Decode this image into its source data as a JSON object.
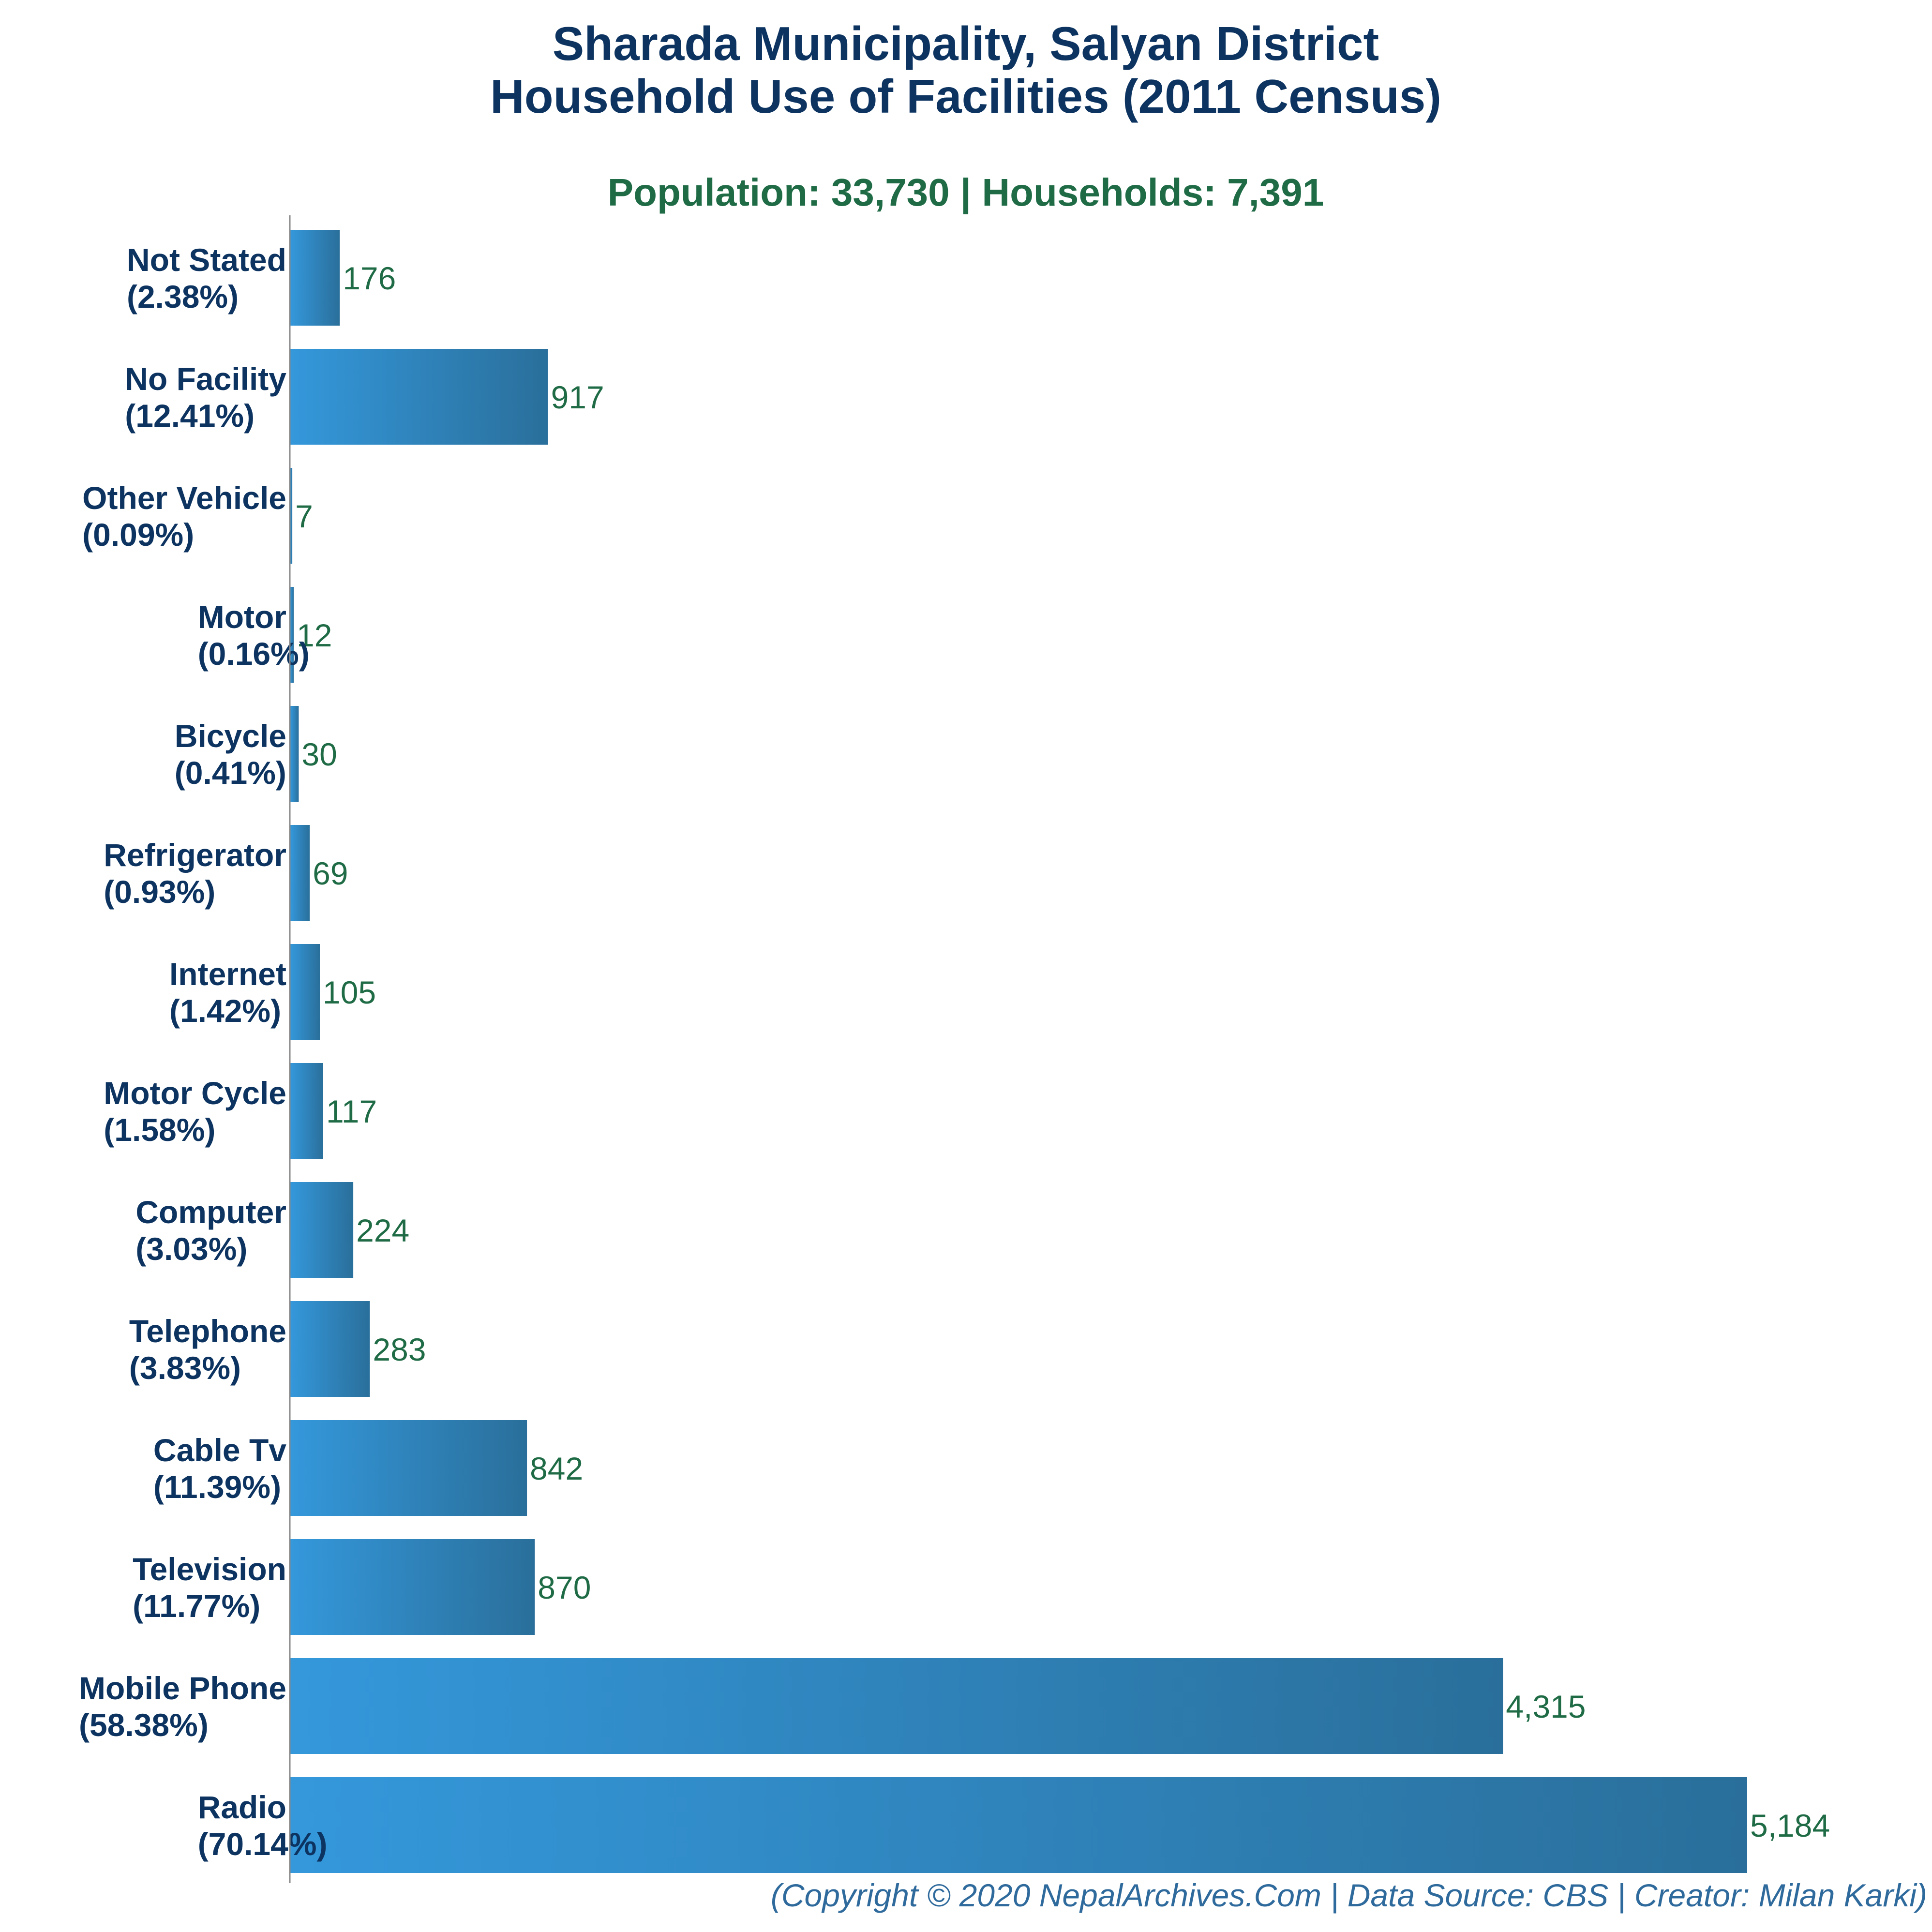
{
  "chart_data": {
    "type": "bar",
    "orientation": "horizontal",
    "title": [
      "Sharada Municipality, Salyan District",
      "Household Use of Facilities (2011 Census)"
    ],
    "subtitle": "Population: 33,730 | Households: 7,391",
    "categories": [
      "Not Stated",
      "No Facility",
      "Other Vehicle",
      "Motor",
      "Bicycle",
      "Refrigerator",
      "Internet",
      "Motor Cycle",
      "Computer",
      "Telephone",
      "Cable Tv",
      "Television",
      "Mobile Phone",
      "Radio"
    ],
    "percentages": [
      "(2.38%)",
      "(12.41%)",
      "(0.09%)",
      "(0.16%)",
      "(0.41%)",
      "(0.93%)",
      "(1.42%)",
      "(1.58%)",
      "(3.03%)",
      "(3.83%)",
      "(11.39%)",
      "(11.77%)",
      "(58.38%)",
      "(70.14%)"
    ],
    "values": [
      176,
      917,
      7,
      12,
      30,
      69,
      105,
      117,
      224,
      283,
      842,
      870,
      4315,
      5184
    ],
    "value_labels": [
      "176",
      "917",
      "7",
      "12",
      "30",
      "69",
      "105",
      "117",
      "224",
      "283",
      "842",
      "870",
      "4,315",
      "5,184"
    ],
    "xlim": [
      0,
      5184
    ],
    "grid": false,
    "legend": "none",
    "colors": {
      "bar_gradient_start": "#3498db",
      "bar_gradient_end": "#2a6f9b",
      "title": "#0d3461",
      "subtitle": "#1e6b45",
      "category_label": "#0d3461",
      "value_label": "#1e6b45",
      "axis": "#888888",
      "footer": "#2f6a9c"
    }
  },
  "footer": "(Copyright © 2020 NepalArchives.Com | Data Source: CBS | Creator: Milan Karki)"
}
